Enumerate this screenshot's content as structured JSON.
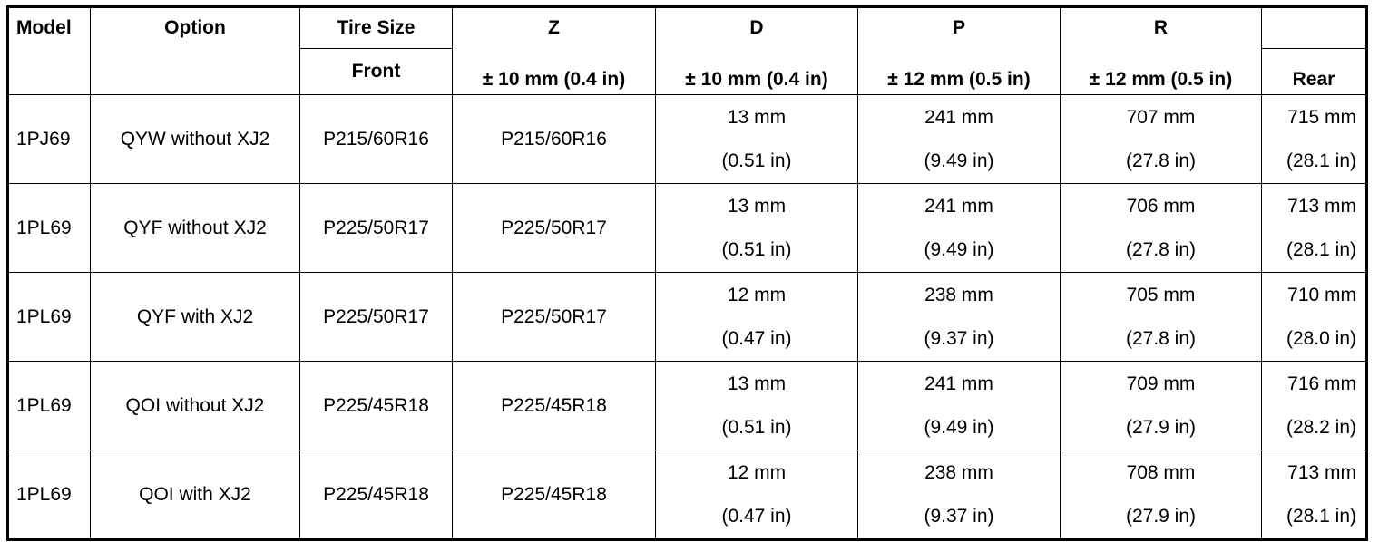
{
  "header": {
    "model": "Model",
    "option": "Option",
    "tire_size": "Tire Size",
    "front": "Front",
    "rear": "Rear",
    "columns": [
      {
        "name": "Z",
        "tolerance": "± 10 mm (0.4 in)"
      },
      {
        "name": "D",
        "tolerance": "± 10 mm (0.4 in)"
      },
      {
        "name": "P",
        "tolerance": "± 12 mm (0.5 in)"
      },
      {
        "name": "R",
        "tolerance": "± 12 mm (0.5 in)"
      }
    ]
  },
  "table": {
    "rows": [
      [
        "1PJ69",
        "QYW without XJ2",
        "P215/60R16",
        "P215/60R16",
        [
          "13 mm",
          "(0.51 in)"
        ],
        [
          "241 mm",
          "(9.49 in)"
        ],
        [
          "707 mm",
          "(27.8 in)"
        ],
        [
          "715 mm",
          "(28.1 in)"
        ]
      ],
      [
        "1PL69",
        "QYF without XJ2",
        "P225/50R17",
        "P225/50R17",
        [
          "13 mm",
          "(0.51 in)"
        ],
        [
          "241 mm",
          "(9.49 in)"
        ],
        [
          "706 mm",
          "(27.8 in)"
        ],
        [
          "713 mm",
          "(28.1 in)"
        ]
      ],
      [
        "1PL69",
        "QYF with XJ2",
        "P225/50R17",
        "P225/50R17",
        [
          "12 mm",
          "(0.47 in)"
        ],
        [
          "238 mm",
          "(9.37 in)"
        ],
        [
          "705 mm",
          "(27.8 in)"
        ],
        [
          "710 mm",
          "(28.0 in)"
        ]
      ],
      [
        "1PL69",
        "QOI without XJ2",
        "P225/45R18",
        "P225/45R18",
        [
          "13 mm",
          "(0.51 in)"
        ],
        [
          "241 mm",
          "(9.49 in)"
        ],
        [
          "709 mm",
          "(27.9 in)"
        ],
        [
          "716 mm",
          "(28.2 in)"
        ]
      ],
      [
        "1PL69",
        "QOI with XJ2",
        "P225/45R18",
        "P225/45R18",
        [
          "12 mm",
          "(0.47 in)"
        ],
        [
          "238 mm",
          "(9.37 in)"
        ],
        [
          "708 mm",
          "(27.9 in)"
        ],
        [
          "713 mm",
          "(28.1 in)"
        ]
      ]
    ]
  }
}
